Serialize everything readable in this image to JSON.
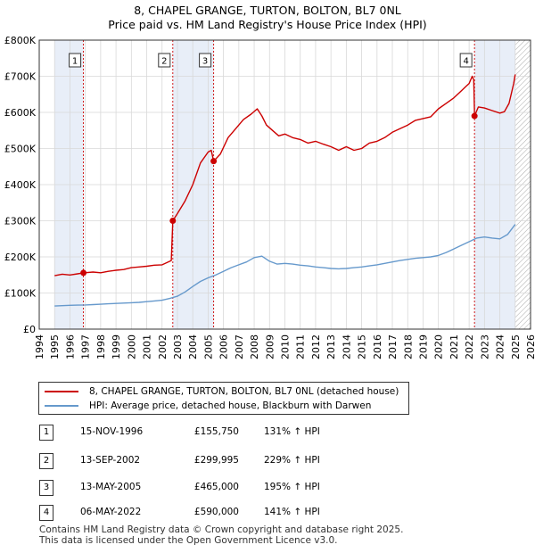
{
  "title_line1": "8, CHAPEL GRANGE, TURTON, BOLTON, BL7 0NL",
  "title_line2": "Price paid vs. HM Land Registry's House Price Index (HPI)",
  "colors": {
    "property": "#cc0000",
    "hpi": "#6699cc",
    "band": "#e8eef8",
    "marker": "#cc0000"
  },
  "chart_data": {
    "type": "line",
    "xlim": [
      1994,
      2026
    ],
    "ylim": [
      0,
      800000
    ],
    "y_ticks": [
      {
        "value": 0,
        "label": "£0"
      },
      {
        "value": 100000,
        "label": "£100K"
      },
      {
        "value": 200000,
        "label": "£200K"
      },
      {
        "value": 300000,
        "label": "£300K"
      },
      {
        "value": 400000,
        "label": "£400K"
      },
      {
        "value": 500000,
        "label": "£500K"
      },
      {
        "value": 600000,
        "label": "£600K"
      },
      {
        "value": 700000,
        "label": "£700K"
      },
      {
        "value": 800000,
        "label": "£800K"
      }
    ],
    "x_ticks": [
      "1994",
      "1995",
      "1996",
      "1997",
      "1998",
      "1999",
      "2000",
      "2001",
      "2002",
      "2003",
      "2004",
      "2005",
      "2006",
      "2007",
      "2008",
      "2009",
      "2010",
      "2011",
      "2012",
      "2013",
      "2014",
      "2015",
      "2016",
      "2017",
      "2018",
      "2019",
      "2020",
      "2021",
      "2022",
      "2023",
      "2024",
      "2025",
      "2026"
    ],
    "shaded_ranges": [
      [
        1995.0,
        1996.88
      ],
      [
        2002.7,
        2005.36
      ],
      [
        2022.35,
        2025.0
      ]
    ],
    "future_hatch_from": 2025.0,
    "series": [
      {
        "name": "8, CHAPEL GRANGE, TURTON, BOLTON, BL7 0NL (detached house)",
        "x": [
          1995.0,
          1995.5,
          1996.0,
          1996.5,
          1996.88,
          1997.5,
          1998.0,
          1998.5,
          1999.0,
          1999.5,
          2000.0,
          2000.5,
          2001.0,
          2001.5,
          2002.0,
          2002.4,
          2002.6,
          2002.7,
          2003.0,
          2003.5,
          2004.0,
          2004.5,
          2005.0,
          2005.2,
          2005.36,
          2005.8,
          2006.3,
          2006.8,
          2007.3,
          2007.8,
          2008.2,
          2008.5,
          2008.8,
          2009.2,
          2009.6,
          2010.0,
          2010.5,
          2011.0,
          2011.5,
          2012.0,
          2012.5,
          2013.0,
          2013.5,
          2014.0,
          2014.5,
          2015.0,
          2015.5,
          2016.0,
          2016.5,
          2017.0,
          2017.5,
          2018.0,
          2018.5,
          2019.0,
          2019.5,
          2020.0,
          2020.5,
          2021.0,
          2021.5,
          2021.8,
          2022.0,
          2022.2,
          2022.3,
          2022.35,
          2022.6,
          2023.0,
          2023.5,
          2024.0,
          2024.3,
          2024.6,
          2024.9,
          2025.0
        ],
        "values": [
          148000,
          152000,
          150000,
          153000,
          155750,
          158000,
          156000,
          160000,
          163000,
          165000,
          170000,
          172000,
          174000,
          177000,
          178000,
          186000,
          190000,
          299995,
          320000,
          355000,
          400000,
          460000,
          490000,
          495000,
          465000,
          485000,
          530000,
          555000,
          580000,
          595000,
          610000,
          590000,
          565000,
          550000,
          535000,
          540000,
          530000,
          525000,
          515000,
          520000,
          512000,
          505000,
          495000,
          505000,
          495000,
          500000,
          515000,
          520000,
          530000,
          545000,
          555000,
          565000,
          578000,
          583000,
          588000,
          610000,
          625000,
          640000,
          660000,
          672000,
          680000,
          700000,
          690000,
          590000,
          615000,
          612000,
          605000,
          598000,
          602000,
          625000,
          680000,
          705000
        ]
      },
      {
        "name": "HPI: Average price, detached house, Blackburn with Darwen",
        "x": [
          1995.0,
          1995.5,
          1996.0,
          1996.5,
          1997.0,
          1997.5,
          1998.0,
          1998.5,
          1999.0,
          1999.5,
          2000.0,
          2000.5,
          2001.0,
          2001.5,
          2002.0,
          2002.5,
          2003.0,
          2003.5,
          2004.0,
          2004.5,
          2005.0,
          2005.5,
          2006.0,
          2006.5,
          2007.0,
          2007.5,
          2008.0,
          2008.5,
          2009.0,
          2009.5,
          2010.0,
          2010.5,
          2011.0,
          2011.5,
          2012.0,
          2012.5,
          2013.0,
          2013.5,
          2014.0,
          2014.5,
          2015.0,
          2015.5,
          2016.0,
          2016.5,
          2017.0,
          2017.5,
          2018.0,
          2018.5,
          2019.0,
          2019.5,
          2020.0,
          2020.5,
          2021.0,
          2021.5,
          2022.0,
          2022.5,
          2023.0,
          2023.5,
          2024.0,
          2024.5,
          2025.0
        ],
        "values": [
          64000,
          65000,
          66000,
          66500,
          67000,
          68000,
          69000,
          70000,
          71000,
          72000,
          73000,
          74000,
          76000,
          78000,
          80000,
          85000,
          91000,
          103000,
          118000,
          132000,
          142000,
          150000,
          160000,
          170000,
          178000,
          186000,
          198000,
          202000,
          188000,
          180000,
          182000,
          180000,
          177000,
          175000,
          172000,
          170000,
          168000,
          167000,
          168000,
          170000,
          172000,
          175000,
          178000,
          182000,
          186000,
          190000,
          193000,
          196000,
          198000,
          200000,
          204000,
          212000,
          222000,
          232000,
          242000,
          252000,
          255000,
          252000,
          250000,
          262000,
          290000
        ]
      }
    ],
    "sales": [
      {
        "label": "1",
        "x": 1996.88,
        "value": 155750
      },
      {
        "label": "2",
        "x": 2002.7,
        "value": 299995
      },
      {
        "label": "3",
        "x": 2005.36,
        "value": 465000
      },
      {
        "label": "4",
        "x": 2022.35,
        "value": 590000
      }
    ]
  },
  "legend": {
    "property": "8, CHAPEL GRANGE, TURTON, BOLTON, BL7 0NL (detached house)",
    "hpi": "HPI: Average price, detached house, Blackburn with Darwen"
  },
  "transactions": [
    {
      "num": "1",
      "date": "15-NOV-1996",
      "price": "£155,750",
      "hpi": "131% ↑ HPI"
    },
    {
      "num": "2",
      "date": "13-SEP-2002",
      "price": "£299,995",
      "hpi": "229% ↑ HPI"
    },
    {
      "num": "3",
      "date": "13-MAY-2005",
      "price": "£465,000",
      "hpi": "195% ↑ HPI"
    },
    {
      "num": "4",
      "date": "06-MAY-2022",
      "price": "£590,000",
      "hpi": "141% ↑ HPI"
    }
  ],
  "footer": {
    "line1": "Contains HM Land Registry data © Crown copyright and database right 2025.",
    "line2": "This data is licensed under the Open Government Licence v3.0."
  }
}
